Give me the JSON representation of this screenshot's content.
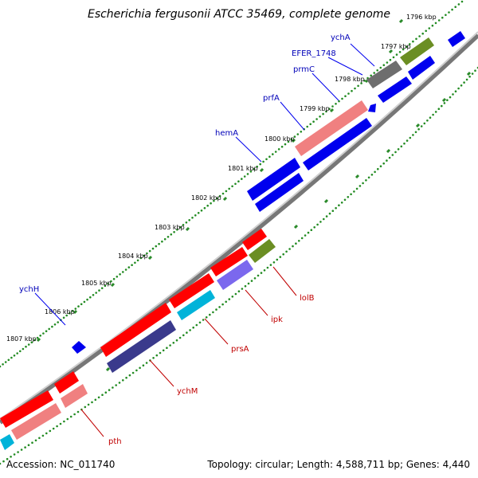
{
  "header": {
    "title": "Escherichia fergusonii ATCC 35469, complete genome"
  },
  "footer": {
    "accession": "Accession: NC_011740",
    "summary": "Topology: circular; Length: 4,588,711 bp; Genes: 4,440"
  },
  "ticks": [
    "1796 kbp",
    "1797 kbp",
    "1798 kbp",
    "1799 kbp",
    "1800 kbp",
    "1801 kbp",
    "1802 kbp",
    "1803 kbp",
    "1804 kbp",
    "1805 kbp",
    "1806 kbp",
    "1807 kbp"
  ],
  "genes_forward": [
    "ychA",
    "EFER_1748",
    "prmC",
    "prfA",
    "hemA",
    "ychH"
  ],
  "genes_reverse": [
    "lolB",
    "ipk",
    "prsA",
    "ychM",
    "pth"
  ],
  "colors": {
    "forward_cds": "#0000ee",
    "reverse_cds": "#ff0000",
    "dark_gray": "#6e6e6e",
    "olive": "#6b8e23",
    "salmon": "#f08080",
    "slate": "#3a3a8c",
    "cyan": "#00b3d9",
    "medium_purple": "#7b68ee",
    "backbone": "#888888",
    "dots": "#228b22"
  }
}
